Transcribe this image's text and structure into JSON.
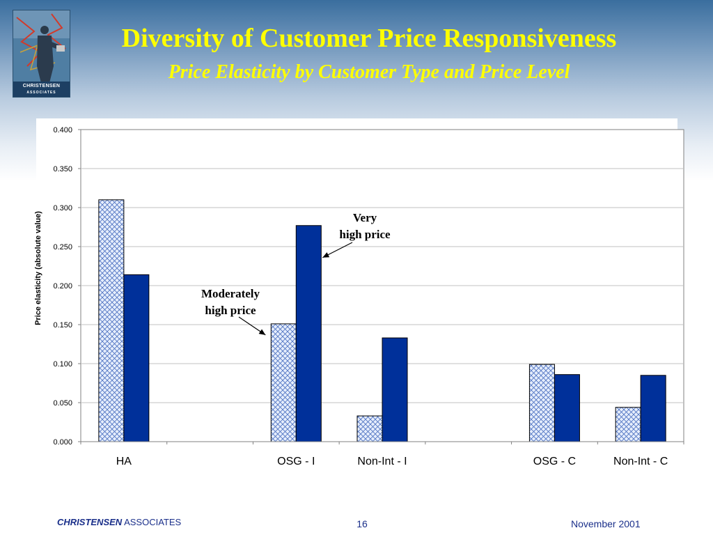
{
  "header": {
    "title": "Diversity of Customer Price Responsiveness",
    "subtitle": "Price Elasticity by Customer Type and Price Level",
    "logo_line1": "CHRISTENSEN",
    "logo_line2": "ASSOCIATES"
  },
  "colors": {
    "title": "#ffff00",
    "bar_solid": "#00309a",
    "bar_hatched_fill": "#e6eefc",
    "bar_hatched_lines": "#4a6fc0",
    "footer_text": "#1a2f8a"
  },
  "chart_data": {
    "type": "bar",
    "title": "",
    "xlabel": "",
    "ylabel": "Price elasticity (absolute value)",
    "ylim": [
      0,
      0.4
    ],
    "yticks": [
      "0.000",
      "0.050",
      "0.100",
      "0.150",
      "0.200",
      "0.250",
      "0.300",
      "0.350",
      "0.400"
    ],
    "grid": true,
    "legend": "none",
    "categories": [
      "HA",
      "",
      "OSG - I",
      "Non-Int - I",
      "",
      "OSG - C",
      "Non-Int - C"
    ],
    "series": [
      {
        "pattern": "hatched",
        "values": [
          0.31,
          null,
          0.151,
          0.033,
          null,
          0.099,
          0.044
        ]
      },
      {
        "pattern": "solid",
        "values": [
          0.214,
          null,
          0.277,
          0.133,
          null,
          0.086,
          0.085
        ]
      }
    ],
    "annotations": [
      {
        "text": [
          "Very",
          "high price"
        ],
        "points_to": {
          "series": 1,
          "category": 2
        }
      },
      {
        "text": [
          "Moderately",
          "high price"
        ],
        "points_to": {
          "series": 0,
          "category": 2
        }
      }
    ]
  },
  "footer": {
    "brand_bold": "CHRISTENSEN",
    "brand_rest": "ASSOCIATES",
    "page_number": "16",
    "date": "November 2001"
  }
}
